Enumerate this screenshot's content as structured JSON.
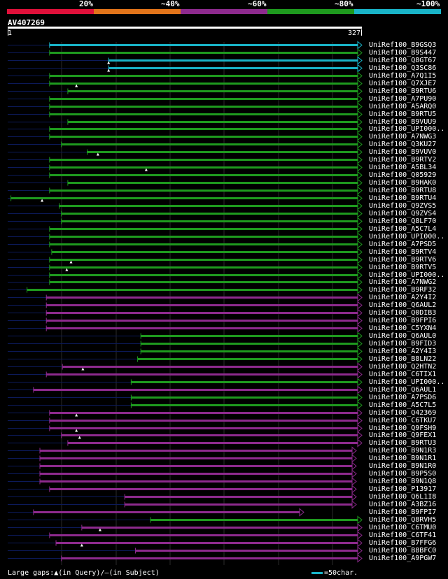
{
  "legend": [
    {
      "label": "20%",
      "color": "#e0103a"
    },
    {
      "label": "~40%",
      "color": "#e2741a"
    },
    {
      "label": "~60%",
      "color": "#8e2a8e"
    },
    {
      "label": "~80%",
      "color": "#1e9a1e"
    },
    {
      "label": "~100%",
      "color": "#19b4c8"
    }
  ],
  "query": {
    "id": "AV407269",
    "start": "1",
    "end": "327"
  },
  "colors": {
    "gap": "#0c1a5a",
    "bg": "#000000",
    "mark": "#ffffff"
  },
  "chart_data": {
    "type": "alignment",
    "query_length": 327,
    "hits": [
      {
        "name": "UniRef100_B9GSQ3",
        "identity": "~100%",
        "aln_start": 40,
        "gap_marks": []
      },
      {
        "name": "UniRef100_B9S447",
        "identity": "~80%",
        "aln_start": 40,
        "gap_marks": []
      },
      {
        "name": "UniRef100_Q8GT67",
        "identity": "~100%",
        "aln_start": 95,
        "gap_marks": [
          95
        ]
      },
      {
        "name": "UniRef100_Q3SC86",
        "identity": "~100%",
        "aln_start": 95,
        "gap_marks": [
          95
        ]
      },
      {
        "name": "UniRef100_A7Q1I5",
        "identity": "~80%",
        "aln_start": 40,
        "gap_marks": []
      },
      {
        "name": "UniRef100_Q7XJE7",
        "identity": "~80%",
        "aln_start": 40,
        "gap_marks": [
          65
        ]
      },
      {
        "name": "UniRef100_B9RTU6",
        "identity": "~80%",
        "aln_start": 57,
        "gap_marks": []
      },
      {
        "name": "UniRef100_A7PU90",
        "identity": "~80%",
        "aln_start": 40,
        "gap_marks": []
      },
      {
        "name": "UniRef100_A5ARQ0",
        "identity": "~80%",
        "aln_start": 40,
        "gap_marks": []
      },
      {
        "name": "UniRef100_B9RTU5",
        "identity": "~80%",
        "aln_start": 40,
        "gap_marks": []
      },
      {
        "name": "UniRef100_B9VUU9",
        "identity": "~80%",
        "aln_start": 57,
        "gap_marks": []
      },
      {
        "name": "UniRef100_UPI000..",
        "identity": "~80%",
        "aln_start": 40,
        "gap_marks": []
      },
      {
        "name": "UniRef100_A7NWG3",
        "identity": "~80%",
        "aln_start": 40,
        "gap_marks": []
      },
      {
        "name": "UniRef100_Q3KU27",
        "identity": "~80%",
        "aln_start": 51,
        "gap_marks": []
      },
      {
        "name": "UniRef100_B9VUV0",
        "identity": "~80%",
        "aln_start": 75,
        "gap_marks": [
          85
        ]
      },
      {
        "name": "UniRef100_B9RTV2",
        "identity": "~80%",
        "aln_start": 40,
        "gap_marks": []
      },
      {
        "name": "UniRef100_A5BL34",
        "identity": "~80%",
        "aln_start": 40,
        "gap_marks": [
          130
        ]
      },
      {
        "name": "UniRef100_Q05929",
        "identity": "~80%",
        "aln_start": 40,
        "gap_marks": []
      },
      {
        "name": "UniRef100_B9HAK0",
        "identity": "~80%",
        "aln_start": 57,
        "gap_marks": []
      },
      {
        "name": "UniRef100_B9RTU8",
        "identity": "~80%",
        "aln_start": 40,
        "gap_marks": []
      },
      {
        "name": "UniRef100_B9RTU4",
        "identity": "~80%",
        "aln_start": 4,
        "gap_marks": [
          33
        ]
      },
      {
        "name": "UniRef100_Q9ZVS5",
        "identity": "~80%",
        "aln_start": 49,
        "gap_marks": []
      },
      {
        "name": "UniRef100_Q9ZVS4",
        "identity": "~80%",
        "aln_start": 51,
        "gap_marks": []
      },
      {
        "name": "UniRef100_Q8LF70",
        "identity": "~80%",
        "aln_start": 51,
        "gap_marks": []
      },
      {
        "name": "UniRef100_A5C7L4",
        "identity": "~80%",
        "aln_start": 40,
        "gap_marks": []
      },
      {
        "name": "UniRef100_UPI000..",
        "identity": "~80%",
        "aln_start": 40,
        "gap_marks": []
      },
      {
        "name": "UniRef100_A7PSD5",
        "identity": "~80%",
        "aln_start": 40,
        "gap_marks": []
      },
      {
        "name": "UniRef100_B9RTV4",
        "identity": "~80%",
        "aln_start": 42,
        "gap_marks": []
      },
      {
        "name": "UniRef100_B9RTV6",
        "identity": "~80%",
        "aln_start": 40,
        "gap_marks": [
          60
        ]
      },
      {
        "name": "UniRef100_B9RTV5",
        "identity": "~80%",
        "aln_start": 40,
        "gap_marks": [
          56
        ]
      },
      {
        "name": "UniRef100_UPI000..",
        "identity": "~80%",
        "aln_start": 40,
        "gap_marks": []
      },
      {
        "name": "UniRef100_A7NWG2",
        "identity": "~80%",
        "aln_start": 40,
        "gap_marks": []
      },
      {
        "name": "UniRef100_B9RF32",
        "identity": "~80%",
        "aln_start": 19,
        "gap_marks": []
      },
      {
        "name": "UniRef100_A2Y4I2",
        "identity": "~60%",
        "aln_start": 37,
        "gap_marks": []
      },
      {
        "name": "UniRef100_Q6AUL2",
        "identity": "~60%",
        "aln_start": 37,
        "gap_marks": []
      },
      {
        "name": "UniRef100_Q0DIB3",
        "identity": "~60%",
        "aln_start": 37,
        "gap_marks": []
      },
      {
        "name": "UniRef100_B9FPI6",
        "identity": "~60%",
        "aln_start": 37,
        "gap_marks": []
      },
      {
        "name": "UniRef100_C5YXN4",
        "identity": "~60%",
        "aln_start": 37,
        "gap_marks": []
      },
      {
        "name": "UniRef100_Q6AUL0",
        "identity": "~80%",
        "aln_start": 125,
        "gap_marks": []
      },
      {
        "name": "UniRef100_B9FID3",
        "identity": "~80%",
        "aln_start": 125,
        "gap_marks": []
      },
      {
        "name": "UniRef100_A2Y4I3",
        "identity": "~80%",
        "aln_start": 125,
        "gap_marks": []
      },
      {
        "name": "UniRef100_B8LN22",
        "identity": "~80%",
        "aln_start": 122,
        "gap_marks": []
      },
      {
        "name": "UniRef100_Q2HTN2",
        "identity": "~60%",
        "aln_start": 52,
        "gap_marks": [
          71
        ]
      },
      {
        "name": "UniRef100_C6TIX1",
        "identity": "~60%",
        "aln_start": 37,
        "gap_marks": []
      },
      {
        "name": "UniRef100_UPI000..",
        "identity": "~80%",
        "aln_start": 116,
        "gap_marks": []
      },
      {
        "name": "UniRef100_Q6AUL1",
        "identity": "~60%",
        "aln_start": 25,
        "gap_marks": []
      },
      {
        "name": "UniRef100_A7PSD6",
        "identity": "~80%",
        "aln_start": 116,
        "gap_marks": []
      },
      {
        "name": "UniRef100_A5C7L5",
        "identity": "~80%",
        "aln_start": 116,
        "gap_marks": []
      },
      {
        "name": "UniRef100_Q42369",
        "identity": "~60%",
        "aln_start": 40,
        "gap_marks": [
          65
        ]
      },
      {
        "name": "UniRef100_C6TKU7",
        "identity": "~60%",
        "aln_start": 40,
        "gap_marks": []
      },
      {
        "name": "UniRef100_Q9FSH9",
        "identity": "~60%",
        "aln_start": 40,
        "gap_marks": [
          65
        ]
      },
      {
        "name": "UniRef100_Q9FEX1",
        "identity": "~60%",
        "aln_start": 51,
        "gap_marks": [
          68
        ]
      },
      {
        "name": "UniRef100_B9RTU3",
        "identity": "~60%",
        "aln_start": 57,
        "gap_marks": []
      },
      {
        "name": "UniRef100_B9N1R3",
        "identity": "~60%",
        "aln_start": 31,
        "gap_marks": []
      },
      {
        "name": "UniRef100_B9N1R1",
        "identity": "~60%",
        "aln_start": 31,
        "gap_marks": []
      },
      {
        "name": "UniRef100_B9N1R0",
        "identity": "~60%",
        "aln_start": 31,
        "gap_marks": []
      },
      {
        "name": "UniRef100_B9P5S0",
        "identity": "~60%",
        "aln_start": 31,
        "gap_marks": []
      },
      {
        "name": "UniRef100_B9N1Q8",
        "identity": "~60%",
        "aln_start": 31,
        "gap_marks": []
      },
      {
        "name": "UniRef100_P13917",
        "identity": "~60%",
        "aln_start": 40,
        "gap_marks": []
      },
      {
        "name": "UniRef100_Q6L1I8",
        "identity": "~60%",
        "aln_start": 110,
        "gap_marks": []
      },
      {
        "name": "UniRef100_A3BZ16",
        "identity": "~60%",
        "aln_start": 110,
        "gap_marks": []
      },
      {
        "name": "UniRef100_B9FPI7",
        "identity": "~60%",
        "aln_start": 25,
        "gap_marks": []
      },
      {
        "name": "UniRef100_Q8RVH5",
        "identity": "~80%",
        "aln_start": 134,
        "gap_marks": []
      },
      {
        "name": "UniRef100_C6TMU0",
        "identity": "~60%",
        "aln_start": 70,
        "gap_marks": [
          87
        ]
      },
      {
        "name": "UniRef100_C6TF41",
        "identity": "~60%",
        "aln_start": 40,
        "gap_marks": []
      },
      {
        "name": "UniRef100_B7FFG6",
        "identity": "~60%",
        "aln_start": 46,
        "gap_marks": [
          70
        ]
      },
      {
        "name": "UniRef100_B8BFC0",
        "identity": "~60%",
        "aln_start": 120,
        "gap_marks": []
      },
      {
        "name": "UniRef100_A9PGW7",
        "identity": "~60%",
        "aln_start": 51,
        "gap_marks": []
      }
    ]
  },
  "footer": {
    "gaps_text": "Large gaps:▲(in Query)/—(in Subject)",
    "scale_text": "=50char."
  }
}
